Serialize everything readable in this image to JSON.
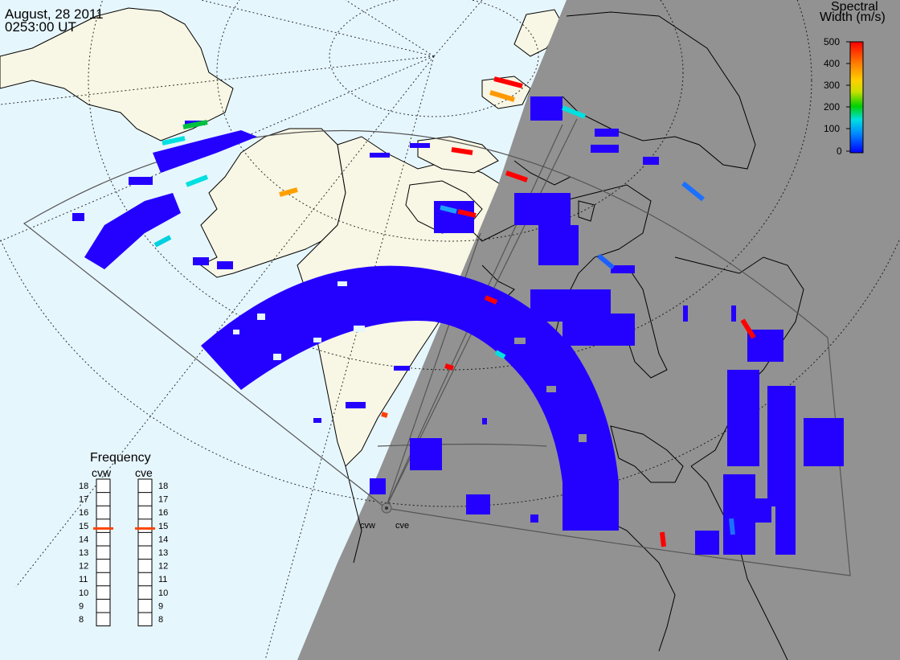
{
  "header": {
    "date": "August, 28 2011",
    "time": "0253:00 UT"
  },
  "legend": {
    "title_line1": "Spectral",
    "title_line2": "Width (m/s)",
    "ticks": [
      "500",
      "400",
      "300",
      "200",
      "100",
      "0"
    ],
    "colors": [
      "#0000ff",
      "#0080ff",
      "#00e0e0",
      "#00d000",
      "#c0e000",
      "#ffd000",
      "#ff8000",
      "#ff0000"
    ]
  },
  "frequency": {
    "title": "Frequency",
    "radars": [
      {
        "name": "cvw",
        "value_mhz": 14.8
      },
      {
        "name": "cve",
        "value_mhz": 14.8
      }
    ],
    "scale": [
      "18",
      "17",
      "16",
      "15",
      "14",
      "13",
      "12",
      "11",
      "10",
      "9",
      "8"
    ]
  },
  "sites": [
    {
      "name": "cvw"
    },
    {
      "name": "cve"
    }
  ],
  "colors": {
    "ocean": "#e6f6fd",
    "land": "#f8f6e4",
    "night": "#929292",
    "scatter": "#2400ff",
    "marker": "#ff4400"
  }
}
